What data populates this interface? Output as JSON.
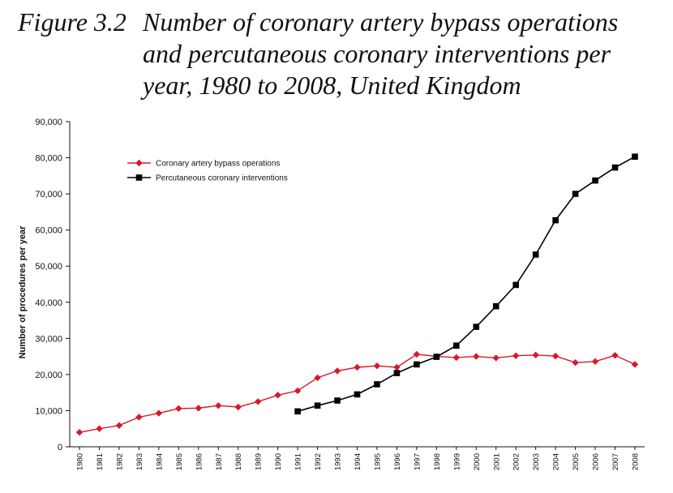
{
  "figure": {
    "label": "Figure 3.2",
    "title": "Number of coronary artery bypass operations and percutaneous coronary interventions per year, 1980 to 2008, United Kingdom"
  },
  "chart_data": {
    "type": "line",
    "ylabel": "Number of procedures per year",
    "xlabel": "",
    "ylim": [
      0,
      90000
    ],
    "yticks": [
      "0",
      "10,000",
      "20,000",
      "30,000",
      "40,000",
      "50,000",
      "60,000",
      "70,000",
      "80,000",
      "90,000"
    ],
    "ytick_values": [
      0,
      10000,
      20000,
      30000,
      40000,
      50000,
      60000,
      70000,
      80000,
      90000
    ],
    "categories": [
      "1980",
      "1981",
      "1982",
      "1983",
      "1984",
      "1985",
      "1986",
      "1987",
      "1988",
      "1989",
      "1990",
      "1991",
      "1992",
      "1993",
      "1994",
      "1995",
      "1996",
      "1997",
      "1998",
      "1999",
      "2000",
      "2001",
      "2002",
      "2003",
      "2004",
      "2005",
      "2006",
      "2007",
      "2008"
    ],
    "legend_position": "top-left",
    "grid": false,
    "series": [
      {
        "name": "Coronary artery bypass operations",
        "color": "#d7192a",
        "marker": "diamond",
        "values": [
          4000,
          5000,
          5900,
          8200,
          9300,
          10600,
          10700,
          11400,
          11000,
          12500,
          14300,
          15500,
          19100,
          21000,
          22000,
          22400,
          22000,
          25600,
          25000,
          24700,
          25000,
          24600,
          25200,
          25400,
          25100,
          23300,
          23600,
          25300,
          22800
        ]
      },
      {
        "name": "Percutaneous coronary interventions",
        "color": "#000000",
        "marker": "square",
        "values": [
          null,
          null,
          null,
          null,
          null,
          null,
          null,
          null,
          null,
          null,
          null,
          9800,
          11400,
          12800,
          14500,
          17300,
          20400,
          22800,
          24900,
          28000,
          33200,
          38900,
          44800,
          53200,
          62700,
          70000,
          73700,
          77300,
          80300
        ]
      }
    ]
  }
}
